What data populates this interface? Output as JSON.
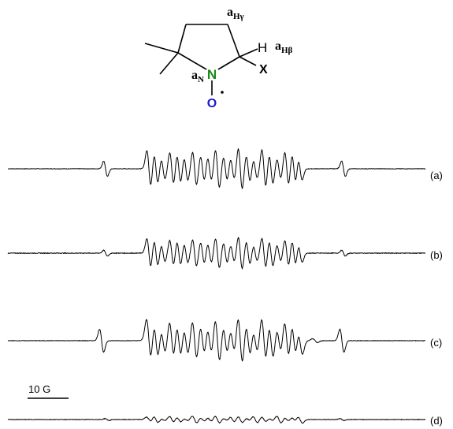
{
  "molecule": {
    "hyperfine_labels": {
      "a_h_gamma": {
        "base": "a",
        "sub": "Hγ"
      },
      "a_h_beta": {
        "base": "a",
        "sub": "Hβ"
      },
      "a_n": {
        "base": "a",
        "sub": "N"
      }
    },
    "atoms": {
      "nitrogen": "N",
      "oxygen": "O",
      "hydrogen": "H",
      "substituent": "X"
    },
    "colors": {
      "nitrogen": "#1a8a1a",
      "oxygen": "#1a1acc",
      "bonds": "#000000"
    }
  },
  "scale_bar": {
    "label": "10 G"
  },
  "spectra": [
    {
      "label": "(a)"
    },
    {
      "label": "(b)"
    },
    {
      "label": "(c)"
    },
    {
      "label": "(d)"
    }
  ]
}
